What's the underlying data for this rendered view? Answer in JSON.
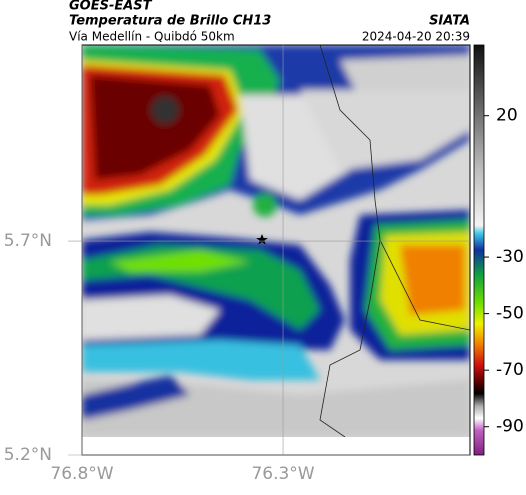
{
  "header": {
    "product": "GOES-EAST",
    "title": "Temperatura de Brillo CH13",
    "source": "SIATA",
    "subtitle": "Vía Medellín - Quibdó 50km",
    "timestamp": "2024-04-20 20:39"
  },
  "map": {
    "xlim": [
      -76.8,
      -75.835
    ],
    "ylim": [
      5.2,
      6.158
    ],
    "xticks": [
      {
        "value": -76.8,
        "label": "76.8°W"
      },
      {
        "value": -76.3,
        "label": "76.3°W"
      }
    ],
    "yticks": [
      {
        "value": 5.2,
        "label": "5.2°N"
      },
      {
        "value": 5.7,
        "label": "5.7°N"
      }
    ],
    "grid": true
  },
  "colorbar": {
    "lim": [
      -100,
      45
    ],
    "ticks": [
      20,
      -30,
      -50,
      -70,
      -90
    ]
  }
}
